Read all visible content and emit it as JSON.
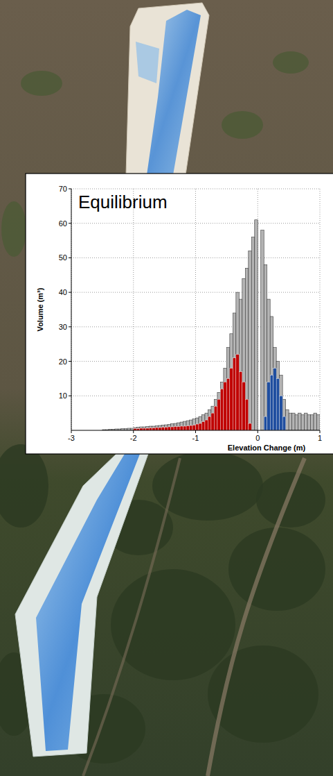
{
  "chart_data": {
    "type": "histogram",
    "title": "Equilibrium",
    "x_label": "Elevation Change (m)",
    "y_label": "Volume (m³)",
    "bins": [
      -2.5,
      -2.45,
      -2.4,
      -2.35,
      -2.3,
      -2.25,
      -2.2,
      -2.15,
      -2.1,
      -2.05,
      -2.0,
      -1.95,
      -1.9,
      -1.85,
      -1.8,
      -1.75,
      -1.7,
      -1.65,
      -1.6,
      -1.55,
      -1.5,
      -1.45,
      -1.4,
      -1.35,
      -1.3,
      -1.25,
      -1.2,
      -1.15,
      -1.1,
      -1.05,
      -1.0,
      -0.95,
      -0.9,
      -0.85,
      -0.8,
      -0.75,
      -0.7,
      -0.65,
      -0.6,
      -0.55,
      -0.5,
      -0.45,
      -0.4,
      -0.35,
      -0.3,
      -0.25,
      -0.2,
      -0.15,
      -0.1,
      -0.05,
      0,
      0.05,
      0.1,
      0.15,
      0.2,
      0.25,
      0.3,
      0.35,
      0.4,
      0.45,
      0.5,
      0.55,
      0.6,
      0.65,
      0.7,
      0.75,
      0.8,
      0.85,
      0.9,
      0.95,
      1.0
    ],
    "series": [
      {
        "color": "#b4b4b4",
        "values": [
          0.2,
          0.2,
          0.3,
          0.3,
          0.4,
          0.4,
          0.5,
          0.5,
          0.6,
          0.6,
          0.8,
          0.9,
          1,
          1,
          1.1,
          1.2,
          1.2,
          1.3,
          1.4,
          1.5,
          1.6,
          1.7,
          1.9,
          2,
          2.2,
          2.4,
          2.6,
          2.8,
          3,
          3.3,
          3.6,
          4,
          4.5,
          5,
          6,
          7,
          9,
          11,
          14,
          18,
          24,
          28,
          34,
          40,
          38,
          44,
          47,
          52,
          56,
          61,
          0,
          58,
          48,
          38,
          33,
          24,
          20,
          16,
          9,
          6,
          5,
          5,
          4.5,
          5,
          4.5,
          5,
          4.5,
          4.5,
          5,
          4.5
        ]
      },
      {
        "color": "#c00000",
        "values": [
          0,
          0,
          0,
          0,
          0,
          0,
          0,
          0,
          0,
          0,
          0.5,
          0.5,
          0.6,
          0.6,
          0.6,
          0.7,
          0.7,
          0.8,
          0.8,
          0.9,
          0.9,
          1,
          1,
          1.1,
          1.1,
          1.2,
          1.2,
          1.3,
          1.4,
          1.5,
          1.8,
          2,
          2.5,
          3,
          4,
          5,
          7,
          9,
          12,
          14,
          15,
          18,
          21,
          22,
          17,
          14,
          9,
          2,
          0,
          0,
          0,
          0,
          0,
          0,
          0,
          0,
          0,
          0,
          0,
          0,
          0,
          0,
          0,
          0,
          0,
          0,
          0,
          0,
          0,
          0
        ]
      },
      {
        "color": "#1f4ea0",
        "values": [
          0,
          0,
          0,
          0,
          0,
          0,
          0,
          0,
          0,
          0,
          0,
          0,
          0,
          0,
          0,
          0,
          0,
          0,
          0,
          0,
          0,
          0,
          0,
          0,
          0,
          0,
          0,
          0,
          0,
          0,
          0,
          0,
          0,
          0,
          0,
          0,
          0,
          0,
          0,
          0,
          0,
          0,
          0,
          0,
          0,
          0,
          0,
          0,
          0,
          0,
          0,
          0,
          4,
          14,
          16,
          18,
          15,
          10,
          4,
          0,
          0,
          0,
          0,
          0,
          0,
          0,
          0,
          0,
          0,
          0
        ]
      }
    ],
    "xlim": [
      -3,
      1
    ],
    "xticks": [
      -3,
      -2,
      -1,
      0,
      1
    ],
    "ylim": [
      0,
      70
    ],
    "yticks": [
      10,
      20,
      30,
      40,
      50,
      60,
      70
    ],
    "grid": true
  }
}
